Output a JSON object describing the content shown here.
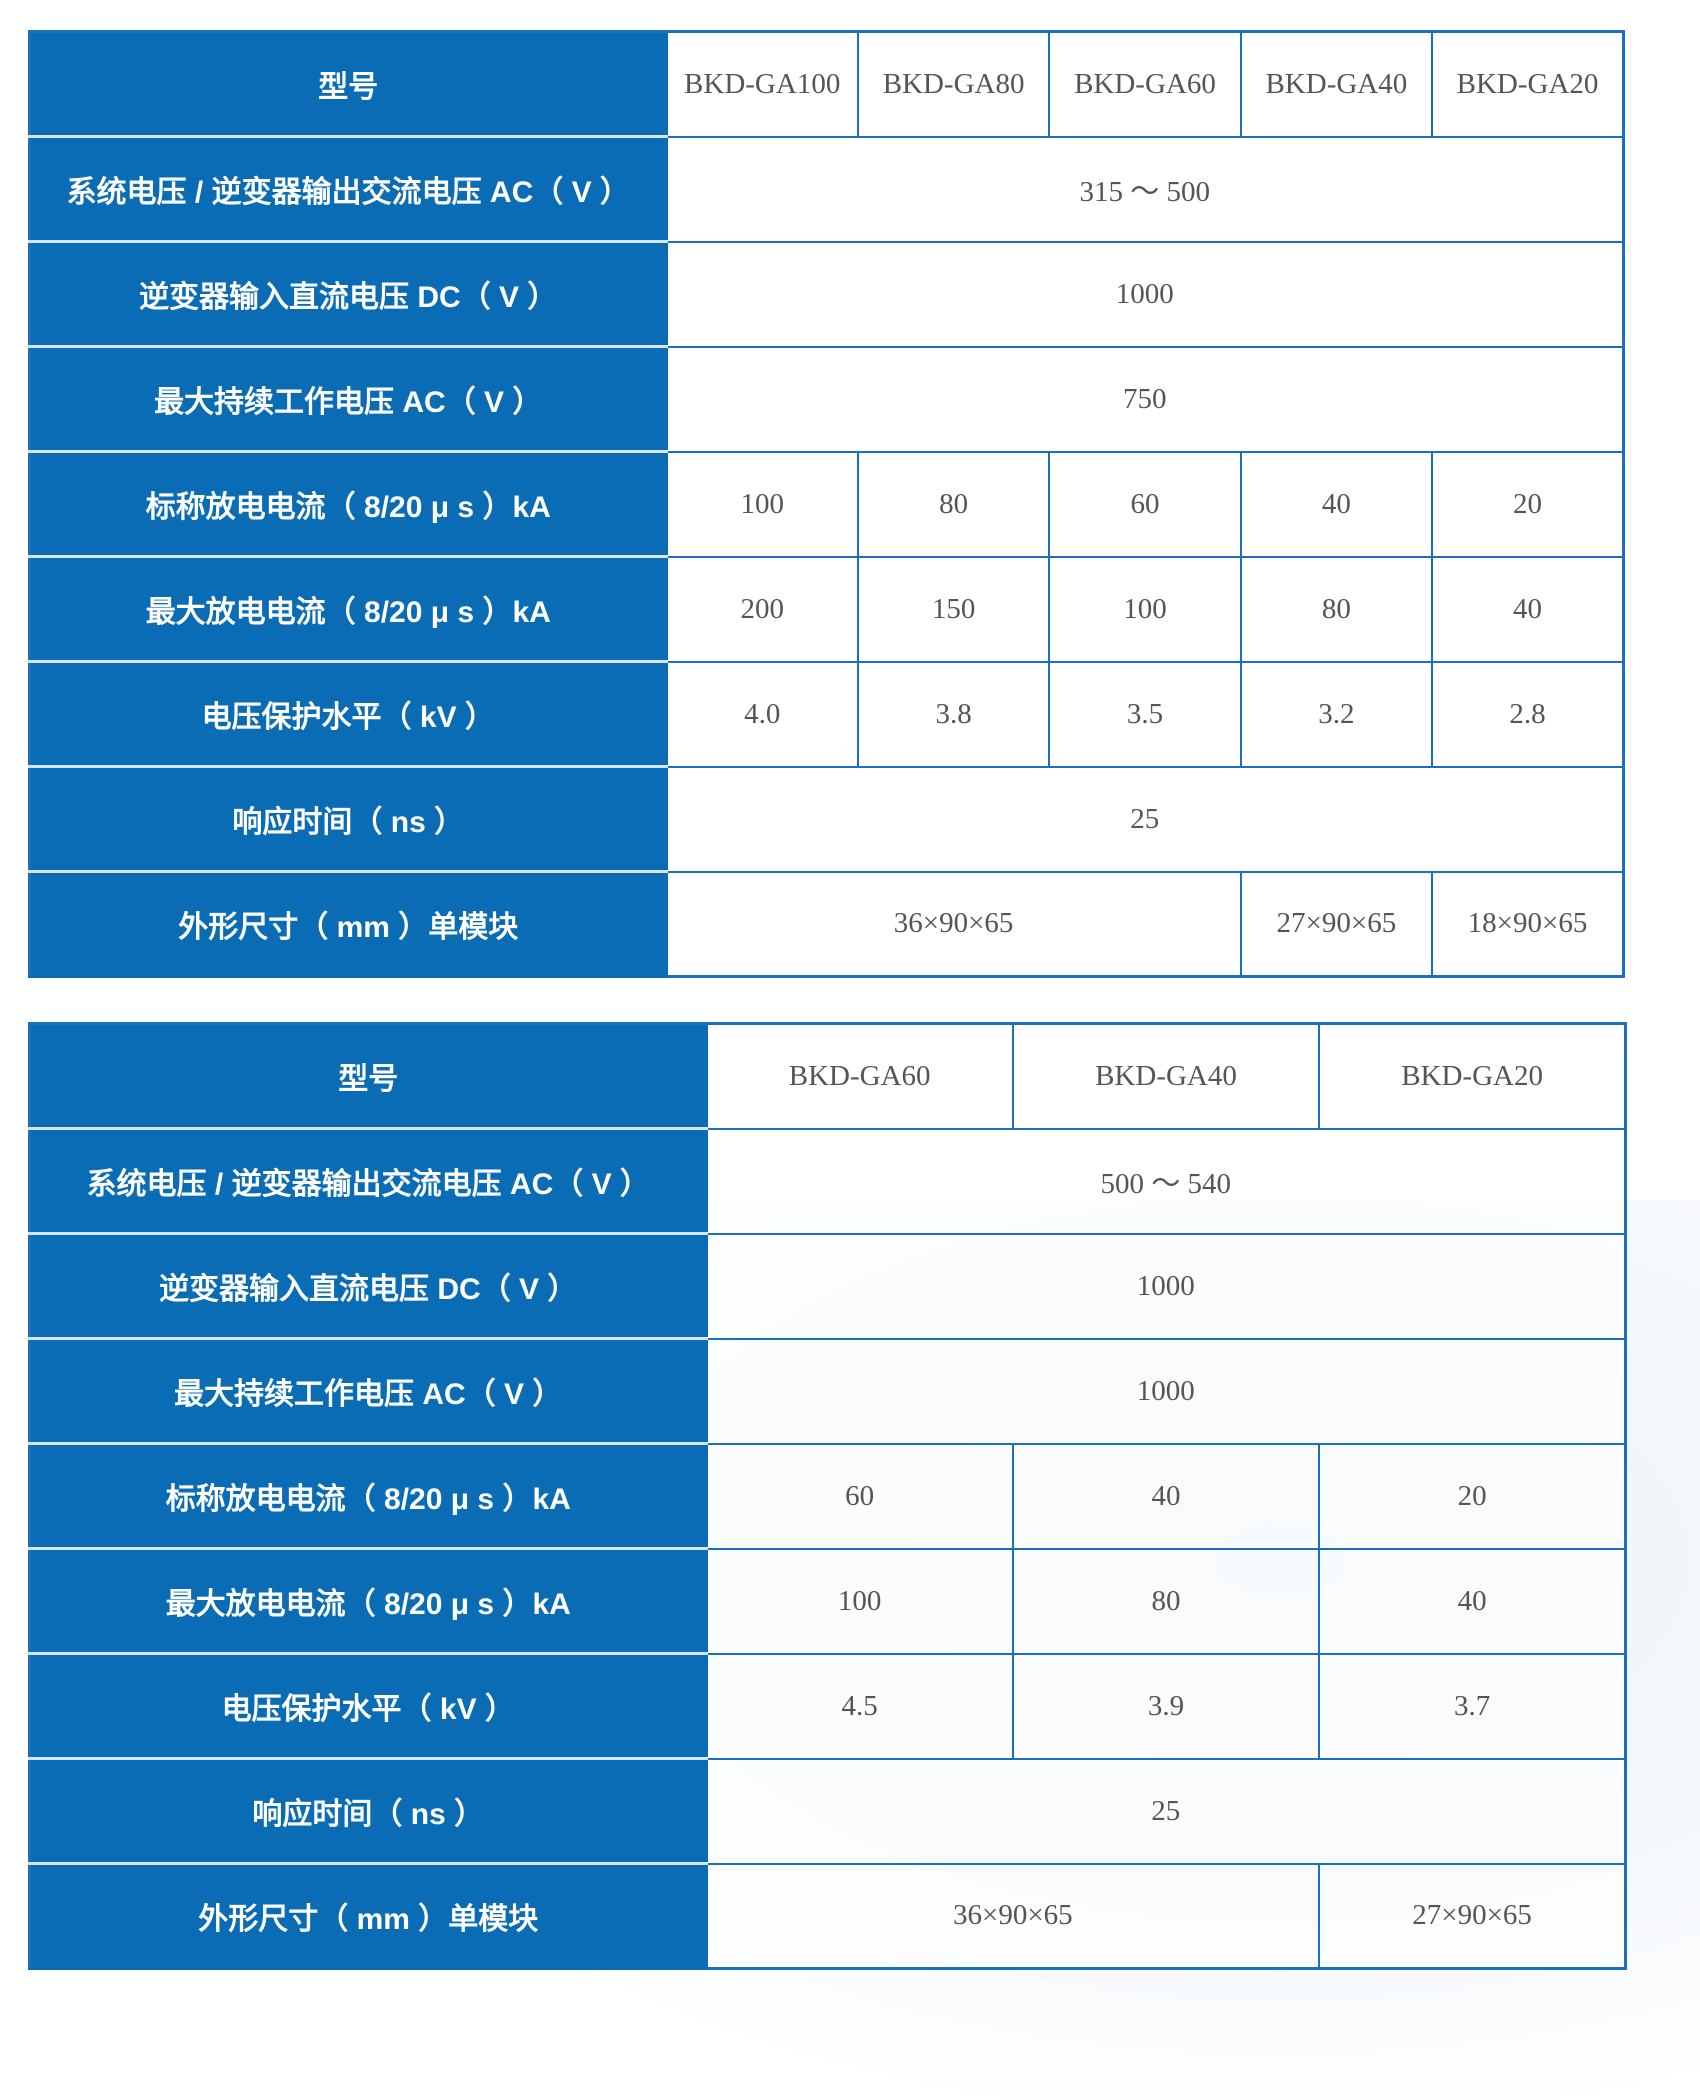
{
  "colors": {
    "header_bg": "#0a6cb4",
    "border": "#1a70be",
    "text": "#555555"
  },
  "tables": [
    {
      "rows": [
        {
          "label": "型号",
          "cells": [
            {
              "v": "BKD-GA100"
            },
            {
              "v": "BKD-GA80"
            },
            {
              "v": "BKD-GA60"
            },
            {
              "v": "BKD-GA40"
            },
            {
              "v": "BKD-GA20"
            }
          ]
        },
        {
          "label": "系统电压 / 逆变器输出交流电压 AC（ V ）",
          "cells": [
            {
              "v": "315 ～ 500",
              "span": 5
            }
          ]
        },
        {
          "label": "逆变器输入直流电压 DC（ V ）",
          "cells": [
            {
              "v": "1000",
              "span": 5
            }
          ]
        },
        {
          "label": "最大持续工作电压 AC（ V ）",
          "cells": [
            {
              "v": "750",
              "span": 5
            }
          ]
        },
        {
          "label": "标称放电电流（ 8/20 μ s ）kA",
          "cells": [
            {
              "v": "100"
            },
            {
              "v": "80"
            },
            {
              "v": "60"
            },
            {
              "v": "40"
            },
            {
              "v": "20"
            }
          ]
        },
        {
          "label": "最大放电电流（ 8/20 μ s ）kA",
          "cells": [
            {
              "v": "200"
            },
            {
              "v": "150"
            },
            {
              "v": "100"
            },
            {
              "v": "80"
            },
            {
              "v": "40"
            }
          ]
        },
        {
          "label": "电压保护水平（ kV ）",
          "cells": [
            {
              "v": "4.0"
            },
            {
              "v": "3.8"
            },
            {
              "v": "3.5"
            },
            {
              "v": "3.2"
            },
            {
              "v": "2.8"
            }
          ]
        },
        {
          "label": "响应时间（ ns ）",
          "cells": [
            {
              "v": "25",
              "span": 5
            }
          ]
        },
        {
          "label": "外形尺寸（ mm ）单模块",
          "cells": [
            {
              "v": "36×90×65",
              "span": 3
            },
            {
              "v": "27×90×65"
            },
            {
              "v": "18×90×65"
            }
          ]
        }
      ]
    },
    {
      "rows": [
        {
          "label": "型号",
          "cells": [
            {
              "v": "BKD-GA60"
            },
            {
              "v": "BKD-GA40"
            },
            {
              "v": "BKD-GA20"
            }
          ]
        },
        {
          "label": "系统电压 / 逆变器输出交流电压 AC（ V ）",
          "cells": [
            {
              "v": "500 ～ 540",
              "span": 3
            }
          ]
        },
        {
          "label": "逆变器输入直流电压 DC（ V ）",
          "cells": [
            {
              "v": "1000",
              "span": 3
            }
          ]
        },
        {
          "label": "最大持续工作电压 AC（ V ）",
          "cells": [
            {
              "v": "1000",
              "span": 3
            }
          ]
        },
        {
          "label": "标称放电电流（ 8/20 μ s ）kA",
          "cells": [
            {
              "v": "60"
            },
            {
              "v": "40"
            },
            {
              "v": "20"
            }
          ]
        },
        {
          "label": "最大放电电流（ 8/20 μ s ）kA",
          "cells": [
            {
              "v": "100"
            },
            {
              "v": "80"
            },
            {
              "v": "40"
            }
          ]
        },
        {
          "label": "电压保护水平（ kV ）",
          "cells": [
            {
              "v": "4.5"
            },
            {
              "v": "3.9"
            },
            {
              "v": "3.7"
            }
          ]
        },
        {
          "label": "响应时间（ ns ）",
          "cells": [
            {
              "v": "25",
              "span": 3
            }
          ]
        },
        {
          "label": "外形尺寸（ mm ）单模块",
          "cells": [
            {
              "v": "36×90×65",
              "span": 2
            },
            {
              "v": "27×90×65"
            }
          ]
        }
      ]
    }
  ]
}
